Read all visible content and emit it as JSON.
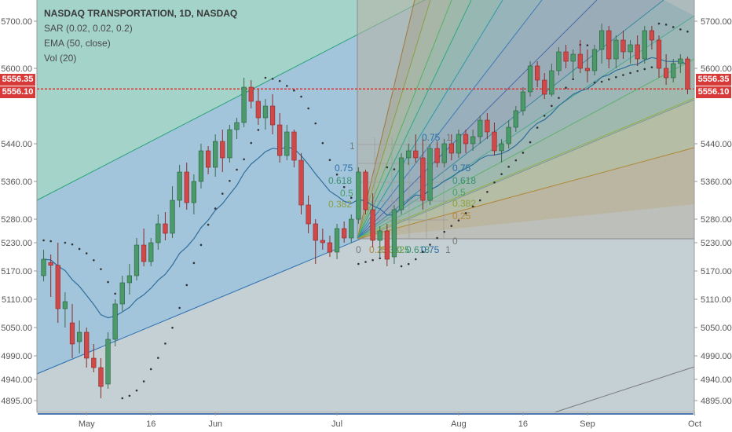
{
  "legend": {
    "title": "NASDAQ TRANSPORTATION, 1D, NASDAQ",
    "sar": "SAR (0.02, 0.02, 0.2)",
    "ema": "EMA (50, close)",
    "vol": "Vol (20)"
  },
  "price_labels": {
    "current_left": "5556.35",
    "secondary_left": "5556.10",
    "current_right": "5556.35",
    "secondary_right": "5556.10"
  },
  "colors": {
    "up": "#4a9a6a",
    "down": "#d04848",
    "price_line": "#e03030",
    "ema": "#2f6e9c",
    "sar": "#333333",
    "axis_text": "#555555"
  },
  "chart_data": {
    "type": "candlestick",
    "title": "NASDAQ TRANSPORTATION, 1D, NASDAQ",
    "ylim": [
      4870,
      5745
    ],
    "y_ticks": [
      4895,
      4940,
      4990,
      5050,
      5110,
      5170,
      5230,
      5280,
      5360,
      5440,
      5600,
      5700
    ],
    "y_tick_labels": [
      "4895.00",
      "4940.00",
      "4990.00",
      "5050.00",
      "5110.00",
      "5170.00",
      "5230.00",
      "5280.00",
      "5360.00",
      "5440.00",
      "5600.00",
      "5700.00"
    ],
    "x_ticks": [
      {
        "label": "May",
        "bar": 6
      },
      {
        "label": "16",
        "bar": 15
      },
      {
        "label": "Jun",
        "bar": 24
      },
      {
        "label": "Jul",
        "bar": 41
      },
      {
        "label": "Aug",
        "bar": 58
      },
      {
        "label": "16",
        "bar": 67
      },
      {
        "label": "Sep",
        "bar": 76
      },
      {
        "label": "Oct",
        "bar": 91
      }
    ],
    "last_price": 5556.35,
    "secondary_price": 5556.1,
    "candles": [
      {
        "o": 5160,
        "h": 5215,
        "l": 5148,
        "c": 5195
      },
      {
        "o": 5188,
        "h": 5205,
        "l": 5115,
        "c": 5182
      },
      {
        "o": 5182,
        "h": 5230,
        "l": 5060,
        "c": 5090
      },
      {
        "o": 5090,
        "h": 5125,
        "l": 5050,
        "c": 5105
      },
      {
        "o": 5060,
        "h": 5100,
        "l": 4985,
        "c": 5015
      },
      {
        "o": 5020,
        "h": 5065,
        "l": 4995,
        "c": 5040
      },
      {
        "o": 5040,
        "h": 5050,
        "l": 4965,
        "c": 4985
      },
      {
        "o": 4985,
        "h": 5015,
        "l": 4955,
        "c": 4965
      },
      {
        "o": 4965,
        "h": 4985,
        "l": 4900,
        "c": 4925
      },
      {
        "o": 4930,
        "h": 5040,
        "l": 4920,
        "c": 5025
      },
      {
        "o": 5025,
        "h": 5110,
        "l": 5010,
        "c": 5100
      },
      {
        "o": 5100,
        "h": 5160,
        "l": 5085,
        "c": 5145
      },
      {
        "o": 5145,
        "h": 5185,
        "l": 5120,
        "c": 5160
      },
      {
        "o": 5160,
        "h": 5240,
        "l": 5150,
        "c": 5225
      },
      {
        "o": 5225,
        "h": 5260,
        "l": 5180,
        "c": 5190
      },
      {
        "o": 5190,
        "h": 5240,
        "l": 5180,
        "c": 5230
      },
      {
        "o": 5230,
        "h": 5290,
        "l": 5215,
        "c": 5270
      },
      {
        "o": 5270,
        "h": 5295,
        "l": 5235,
        "c": 5250
      },
      {
        "o": 5250,
        "h": 5350,
        "l": 5240,
        "c": 5320
      },
      {
        "o": 5320,
        "h": 5395,
        "l": 5305,
        "c": 5380
      },
      {
        "o": 5380,
        "h": 5400,
        "l": 5300,
        "c": 5315
      },
      {
        "o": 5315,
        "h": 5375,
        "l": 5290,
        "c": 5360
      },
      {
        "o": 5360,
        "h": 5440,
        "l": 5345,
        "c": 5425
      },
      {
        "o": 5425,
        "h": 5435,
        "l": 5375,
        "c": 5390
      },
      {
        "o": 5390,
        "h": 5460,
        "l": 5370,
        "c": 5445
      },
      {
        "o": 5445,
        "h": 5470,
        "l": 5380,
        "c": 5410
      },
      {
        "o": 5410,
        "h": 5480,
        "l": 5400,
        "c": 5470
      },
      {
        "o": 5470,
        "h": 5495,
        "l": 5450,
        "c": 5485
      },
      {
        "o": 5485,
        "h": 5580,
        "l": 5475,
        "c": 5560
      },
      {
        "o": 5560,
        "h": 5575,
        "l": 5515,
        "c": 5530
      },
      {
        "o": 5530,
        "h": 5555,
        "l": 5480,
        "c": 5495
      },
      {
        "o": 5495,
        "h": 5535,
        "l": 5470,
        "c": 5520
      },
      {
        "o": 5520,
        "h": 5545,
        "l": 5460,
        "c": 5480
      },
      {
        "o": 5480,
        "h": 5505,
        "l": 5400,
        "c": 5415
      },
      {
        "o": 5415,
        "h": 5480,
        "l": 5405,
        "c": 5465
      },
      {
        "o": 5465,
        "h": 5470,
        "l": 5390,
        "c": 5405
      },
      {
        "o": 5405,
        "h": 5420,
        "l": 5290,
        "c": 5310
      },
      {
        "o": 5310,
        "h": 5330,
        "l": 5250,
        "c": 5270
      },
      {
        "o": 5270,
        "h": 5280,
        "l": 5185,
        "c": 5235
      },
      {
        "o": 5235,
        "h": 5260,
        "l": 5215,
        "c": 5230
      },
      {
        "o": 5230,
        "h": 5245,
        "l": 5200,
        "c": 5210
      },
      {
        "o": 5210,
        "h": 5270,
        "l": 5195,
        "c": 5260
      },
      {
        "o": 5260,
        "h": 5275,
        "l": 5230,
        "c": 5240
      },
      {
        "o": 5240,
        "h": 5290,
        "l": 5230,
        "c": 5280
      },
      {
        "o": 5280,
        "h": 5390,
        "l": 5270,
        "c": 5380
      },
      {
        "o": 5380,
        "h": 5385,
        "l": 5290,
        "c": 5300
      },
      {
        "o": 5300,
        "h": 5335,
        "l": 5220,
        "c": 5235
      },
      {
        "o": 5235,
        "h": 5265,
        "l": 5200,
        "c": 5255
      },
      {
        "o": 5255,
        "h": 5270,
        "l": 5180,
        "c": 5195
      },
      {
        "o": 5200,
        "h": 5310,
        "l": 5185,
        "c": 5300
      },
      {
        "o": 5300,
        "h": 5420,
        "l": 5290,
        "c": 5410
      },
      {
        "o": 5410,
        "h": 5440,
        "l": 5395,
        "c": 5425
      },
      {
        "o": 5425,
        "h": 5460,
        "l": 5400,
        "c": 5410
      },
      {
        "o": 5410,
        "h": 5450,
        "l": 5300,
        "c": 5320
      },
      {
        "o": 5320,
        "h": 5440,
        "l": 5310,
        "c": 5430
      },
      {
        "o": 5430,
        "h": 5445,
        "l": 5390,
        "c": 5400
      },
      {
        "o": 5400,
        "h": 5450,
        "l": 5390,
        "c": 5440
      },
      {
        "o": 5440,
        "h": 5460,
        "l": 5405,
        "c": 5420
      },
      {
        "o": 5420,
        "h": 5470,
        "l": 5410,
        "c": 5460
      },
      {
        "o": 5460,
        "h": 5470,
        "l": 5420,
        "c": 5440
      },
      {
        "o": 5440,
        "h": 5470,
        "l": 5425,
        "c": 5455
      },
      {
        "o": 5455,
        "h": 5500,
        "l": 5440,
        "c": 5490
      },
      {
        "o": 5490,
        "h": 5505,
        "l": 5450,
        "c": 5465
      },
      {
        "o": 5465,
        "h": 5485,
        "l": 5415,
        "c": 5425
      },
      {
        "o": 5425,
        "h": 5450,
        "l": 5400,
        "c": 5440
      },
      {
        "o": 5440,
        "h": 5490,
        "l": 5430,
        "c": 5475
      },
      {
        "o": 5475,
        "h": 5520,
        "l": 5465,
        "c": 5510
      },
      {
        "o": 5510,
        "h": 5560,
        "l": 5500,
        "c": 5550
      },
      {
        "o": 5550,
        "h": 5615,
        "l": 5540,
        "c": 5605
      },
      {
        "o": 5605,
        "h": 5615,
        "l": 5560,
        "c": 5575
      },
      {
        "o": 5575,
        "h": 5590,
        "l": 5535,
        "c": 5545
      },
      {
        "o": 5545,
        "h": 5610,
        "l": 5540,
        "c": 5595
      },
      {
        "o": 5595,
        "h": 5645,
        "l": 5585,
        "c": 5635
      },
      {
        "o": 5635,
        "h": 5650,
        "l": 5600,
        "c": 5615
      },
      {
        "o": 5615,
        "h": 5640,
        "l": 5580,
        "c": 5630
      },
      {
        "o": 5630,
        "h": 5660,
        "l": 5590,
        "c": 5600
      },
      {
        "o": 5600,
        "h": 5640,
        "l": 5570,
        "c": 5595
      },
      {
        "o": 5595,
        "h": 5650,
        "l": 5585,
        "c": 5640
      },
      {
        "o": 5640,
        "h": 5695,
        "l": 5610,
        "c": 5680
      },
      {
        "o": 5680,
        "h": 5690,
        "l": 5600,
        "c": 5620
      },
      {
        "o": 5620,
        "h": 5670,
        "l": 5600,
        "c": 5660
      },
      {
        "o": 5660,
        "h": 5680,
        "l": 5620,
        "c": 5635
      },
      {
        "o": 5635,
        "h": 5660,
        "l": 5610,
        "c": 5650
      },
      {
        "o": 5650,
        "h": 5670,
        "l": 5605,
        "c": 5620
      },
      {
        "o": 5620,
        "h": 5690,
        "l": 5610,
        "c": 5680
      },
      {
        "o": 5680,
        "h": 5690,
        "l": 5640,
        "c": 5660
      },
      {
        "o": 5660,
        "h": 5670,
        "l": 5580,
        "c": 5600
      },
      {
        "o": 5600,
        "h": 5630,
        "l": 5565,
        "c": 5580
      },
      {
        "o": 5580,
        "h": 5620,
        "l": 5570,
        "c": 5610
      },
      {
        "o": 5610,
        "h": 5630,
        "l": 5590,
        "c": 5620
      },
      {
        "o": 5620,
        "h": 5625,
        "l": 5545,
        "c": 5556
      }
    ]
  }
}
